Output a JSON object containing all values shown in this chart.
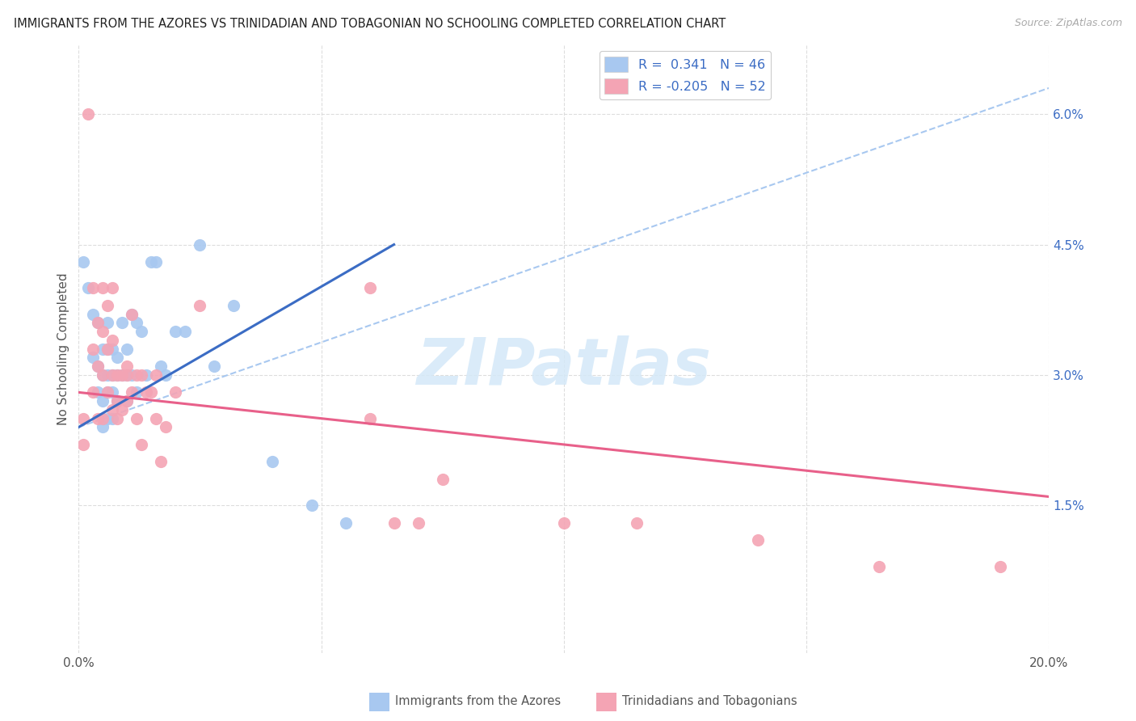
{
  "title": "IMMIGRANTS FROM THE AZORES VS TRINIDADIAN AND TOBAGONIAN NO SCHOOLING COMPLETED CORRELATION CHART",
  "source": "Source: ZipAtlas.com",
  "ylabel": "No Schooling Completed",
  "ytick_labels": [
    "1.5%",
    "3.0%",
    "4.5%",
    "6.0%"
  ],
  "ytick_values": [
    0.015,
    0.03,
    0.045,
    0.06
  ],
  "xlim": [
    0.0,
    0.2
  ],
  "ylim": [
    -0.002,
    0.068
  ],
  "color_blue": "#A8C8F0",
  "color_pink": "#F4A4B4",
  "color_line_blue": "#3B6CC4",
  "color_line_pink": "#E8608A",
  "color_line_dashed": "#A8C8F0",
  "color_grid": "#DDDDDD",
  "watermark_color": "#D4E8F8",
  "blue_points_x": [
    0.001,
    0.002,
    0.003,
    0.003,
    0.004,
    0.004,
    0.004,
    0.005,
    0.005,
    0.005,
    0.005,
    0.006,
    0.006,
    0.006,
    0.006,
    0.006,
    0.007,
    0.007,
    0.007,
    0.007,
    0.008,
    0.008,
    0.008,
    0.009,
    0.009,
    0.01,
    0.01,
    0.01,
    0.011,
    0.011,
    0.012,
    0.012,
    0.013,
    0.014,
    0.015,
    0.016,
    0.017,
    0.018,
    0.02,
    0.022,
    0.025,
    0.028,
    0.032,
    0.04,
    0.048,
    0.055
  ],
  "blue_points_y": [
    0.043,
    0.04,
    0.037,
    0.032,
    0.036,
    0.031,
    0.028,
    0.033,
    0.03,
    0.027,
    0.024,
    0.036,
    0.033,
    0.03,
    0.028,
    0.025,
    0.033,
    0.03,
    0.028,
    0.025,
    0.032,
    0.03,
    0.027,
    0.036,
    0.03,
    0.033,
    0.03,
    0.027,
    0.037,
    0.03,
    0.036,
    0.028,
    0.035,
    0.03,
    0.043,
    0.043,
    0.031,
    0.03,
    0.035,
    0.035,
    0.045,
    0.031,
    0.038,
    0.02,
    0.015,
    0.013
  ],
  "pink_points_x": [
    0.001,
    0.001,
    0.002,
    0.003,
    0.003,
    0.003,
    0.004,
    0.004,
    0.004,
    0.005,
    0.005,
    0.005,
    0.005,
    0.006,
    0.006,
    0.006,
    0.007,
    0.007,
    0.007,
    0.007,
    0.008,
    0.008,
    0.008,
    0.009,
    0.009,
    0.01,
    0.01,
    0.01,
    0.011,
    0.011,
    0.012,
    0.012,
    0.013,
    0.013,
    0.014,
    0.015,
    0.016,
    0.016,
    0.017,
    0.018,
    0.02,
    0.025,
    0.06,
    0.06,
    0.065,
    0.07,
    0.075,
    0.1,
    0.115,
    0.14,
    0.165,
    0.19
  ],
  "pink_points_y": [
    0.025,
    0.022,
    0.06,
    0.04,
    0.033,
    0.028,
    0.036,
    0.031,
    0.025,
    0.04,
    0.035,
    0.03,
    0.025,
    0.038,
    0.033,
    0.028,
    0.04,
    0.034,
    0.03,
    0.026,
    0.03,
    0.027,
    0.025,
    0.03,
    0.026,
    0.031,
    0.027,
    0.03,
    0.037,
    0.028,
    0.03,
    0.025,
    0.03,
    0.022,
    0.028,
    0.028,
    0.025,
    0.03,
    0.02,
    0.024,
    0.028,
    0.038,
    0.04,
    0.025,
    0.013,
    0.013,
    0.018,
    0.013,
    0.013,
    0.011,
    0.008,
    0.008
  ],
  "blue_line_x": [
    0.0,
    0.065
  ],
  "blue_line_y": [
    0.024,
    0.045
  ],
  "pink_line_x": [
    0.0,
    0.2
  ],
  "pink_line_y": [
    0.028,
    0.016
  ],
  "dashed_line_x": [
    0.0,
    0.2
  ],
  "dashed_line_y": [
    0.024,
    0.063
  ],
  "legend_label1": "R =  0.341   N = 46",
  "legend_label2": "R = -0.205   N = 52",
  "bottom_label1": "Immigrants from the Azores",
  "bottom_label2": "Trinidadians and Tobagonians"
}
